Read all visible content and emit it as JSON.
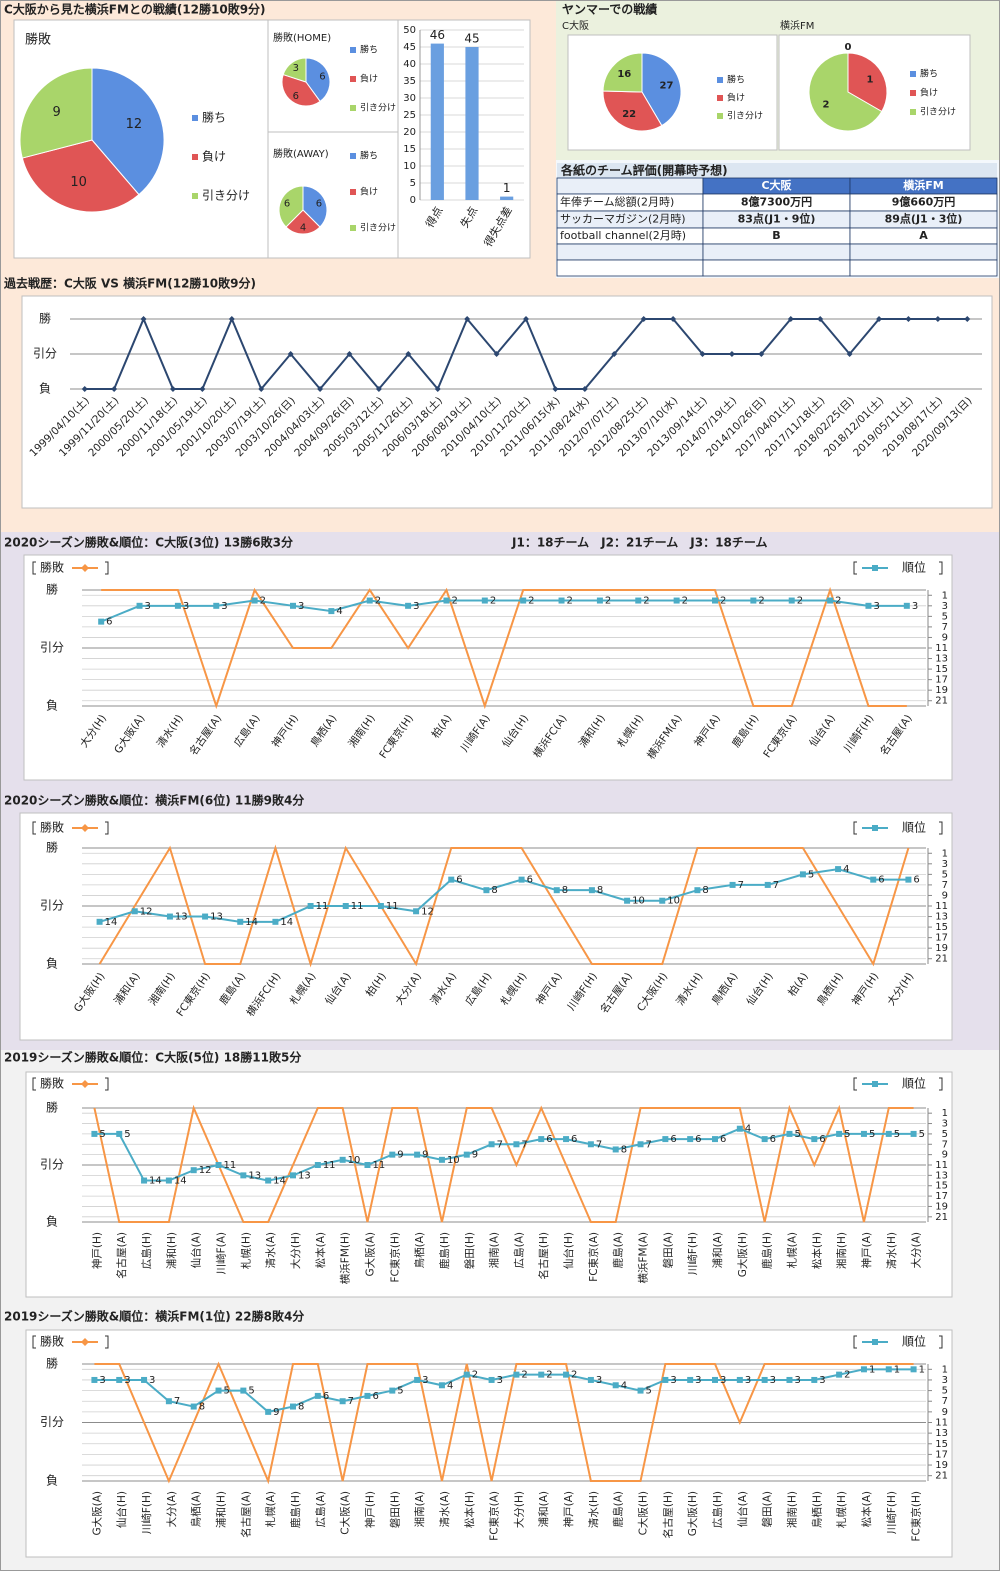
{
  "header": {
    "title": "C大阪から見た横浜FMとの戦績(12勝10敗9分)",
    "yanmar_title": "ヤンマーでの戦績"
  },
  "chart_data": [
    {
      "type": "pie",
      "title": "勝敗",
      "categories": [
        "勝ち",
        "負け",
        "引き分け"
      ],
      "values": [
        12,
        10,
        9
      ],
      "colors": [
        "#5b8fe0",
        "#e05555",
        "#a9d56a"
      ]
    },
    {
      "type": "pie",
      "title": "勝敗(HOME)",
      "categories": [
        "勝ち",
        "負け",
        "引き分け"
      ],
      "values": [
        6,
        6,
        3
      ],
      "colors": [
        "#5b8fe0",
        "#e05555",
        "#a9d56a"
      ]
    },
    {
      "type": "pie",
      "title": "勝敗(AWAY)",
      "categories": [
        "勝ち",
        "負け",
        "引き分け"
      ],
      "values": [
        6,
        4,
        6
      ],
      "colors": [
        "#5b8fe0",
        "#e05555",
        "#a9d56a"
      ]
    },
    {
      "type": "bar",
      "categories": [
        "得点",
        "失点",
        "得失点差"
      ],
      "values": [
        46,
        45,
        1
      ],
      "color": "#6a9fe0",
      "ylim": [
        0,
        50
      ],
      "yticks": [
        0,
        5,
        10,
        15,
        20,
        25,
        30,
        35,
        40,
        45,
        50
      ],
      "grid": true
    },
    {
      "type": "pie",
      "title": "C大阪",
      "categories": [
        "勝ち",
        "負け",
        "引き分け"
      ],
      "values": [
        27,
        22,
        16
      ],
      "colors": [
        "#5b8fe0",
        "#e05555",
        "#a9d56a"
      ]
    },
    {
      "type": "pie",
      "title": "横浜FM",
      "categories": [
        "勝ち",
        "負け",
        "引き分け"
      ],
      "values": [
        0,
        1,
        2
      ],
      "colors": [
        "#5b8fe0",
        "#e05555",
        "#a9d56a"
      ]
    },
    {
      "type": "line",
      "title": "過去戦歴：C大阪 VS 横浜FM(12勝10敗9分)",
      "categories": [
        "1999/04/10(土)",
        "1999/11/20(土)",
        "2000/05/20(土)",
        "2000/11/18(土)",
        "2001/05/19(土)",
        "2001/10/20(土)",
        "2003/07/19(土)",
        "2003/10/26(日)",
        "2004/04/03(土)",
        "2004/09/26(日)",
        "2005/03/12(土)",
        "2005/11/26(土)",
        "2006/03/18(土)",
        "2006/08/19(土)",
        "2010/04/10(土)",
        "2010/11/20(土)",
        "2011/06/15(水)",
        "2011/08/24(水)",
        "2012/07/07(土)",
        "2012/08/25(土)",
        "2013/07/10(水)",
        "2013/09/14(土)",
        "2014/07/19(土)",
        "2014/10/26(日)",
        "2017/04/01(土)",
        "2017/11/18(土)",
        "2018/02/25(日)",
        "2018/12/01(土)",
        "2019/05/11(土)",
        "2019/08/17(土)",
        "2020/09/13(日)"
      ],
      "values": [
        0,
        0,
        2,
        0,
        0,
        2,
        0,
        1,
        0,
        1,
        0,
        1,
        0,
        2,
        1,
        2,
        0,
        0,
        1,
        2,
        2,
        1,
        1,
        1,
        2,
        2,
        1,
        2,
        2,
        2,
        2
      ],
      "color": "#2c4770",
      "marker": "diamond",
      "ylim": [
        0,
        2
      ],
      "yticks": [
        {
          "value": 0,
          "label": "負"
        },
        {
          "value": 1,
          "label": "引分"
        },
        {
          "value": 2,
          "label": "勝"
        }
      ],
      "grid": true
    },
    {
      "type": "line",
      "title": "2020シーズン勝敗&順位：C大阪(3位) 13勝6敗3分",
      "note": "J1：18チーム　J2：21チーム　J3：18チーム",
      "categories": [
        "大分(H)",
        "G大阪(A)",
        "清水(H)",
        "名古屋(A)",
        "広島(A)",
        "神戸(H)",
        "鳥栖(A)",
        "湘南(H)",
        "FC東京(H)",
        "柏(A)",
        "川崎F(A)",
        "仙台(H)",
        "横浜FC(A)",
        "浦和(H)",
        "札幌(H)",
        "横浜FM(A)",
        "神戸(A)",
        "鹿島(H)",
        "FC東京(A)",
        "仙台(A)",
        "川崎F(H)",
        "名古屋(A)"
      ],
      "series": [
        {
          "name": "勝敗",
          "color": "#f79646",
          "values": [
            2,
            2,
            2,
            0,
            2,
            1,
            1,
            2,
            1,
            2,
            0,
            2,
            2,
            2,
            2,
            2,
            2,
            0,
            0,
            2,
            0,
            0
          ]
        },
        {
          "name": "順位",
          "color": "#4bacc6",
          "axis": "y2",
          "marker": "square",
          "labels": true,
          "values": [
            6,
            3,
            3,
            3,
            2,
            3,
            4,
            2,
            3,
            2,
            2,
            2,
            2,
            2,
            2,
            2,
            2,
            2,
            2,
            2,
            3,
            3
          ]
        }
      ],
      "ylim": [
        0,
        2
      ],
      "yticks": [
        {
          "value": 0,
          "label": "負"
        },
        {
          "value": 1,
          "label": "引分"
        },
        {
          "value": 2,
          "label": "勝"
        }
      ],
      "y2lim": [
        22,
        0
      ],
      "y2ticks": [
        1,
        3,
        5,
        7,
        9,
        11,
        13,
        15,
        17,
        19,
        21
      ],
      "grid": true
    },
    {
      "type": "line",
      "title": "2020シーズン勝敗&順位：横浜FM(6位) 11勝9敗4分",
      "categories": [
        "G大阪(H)",
        "浦和(A)",
        "湘南(H)",
        "FC東京(H)",
        "鹿島(A)",
        "横浜FC(H)",
        "札幌(A)",
        "仙台(A)",
        "柏(H)",
        "大分(A)",
        "清水(A)",
        "広島(H)",
        "札幌(H)",
        "神戸(A)",
        "川崎F(H)",
        "名古屋(A)",
        "C大阪(H)",
        "清水(H)",
        "鳥栖(A)",
        "仙台(H)",
        "柏(A)",
        "鳥栖(H)",
        "神戸(H)",
        "大分(H)"
      ],
      "series": [
        {
          "name": "勝敗",
          "color": "#f79646",
          "values": [
            0,
            1,
            2,
            0,
            0,
            2,
            0,
            2,
            1,
            0,
            2,
            2,
            2,
            1,
            0,
            0,
            0,
            2,
            2,
            2,
            2,
            1,
            0,
            2
          ]
        },
        {
          "name": "順位",
          "color": "#4bacc6",
          "axis": "y2",
          "marker": "square",
          "labels": true,
          "values": [
            14,
            12,
            13,
            13,
            14,
            14,
            11,
            11,
            11,
            12,
            6,
            8,
            6,
            8,
            8,
            10,
            10,
            8,
            7,
            7,
            5,
            4,
            6,
            6
          ]
        }
      ],
      "ylim": [
        0,
        2
      ],
      "yticks": [
        {
          "value": 0,
          "label": "負"
        },
        {
          "value": 1,
          "label": "引分"
        },
        {
          "value": 2,
          "label": "勝"
        }
      ],
      "y2lim": [
        22,
        0
      ],
      "y2ticks": [
        1,
        3,
        5,
        7,
        9,
        11,
        13,
        15,
        17,
        19,
        21
      ],
      "grid": true
    },
    {
      "type": "line",
      "title": "2019シーズン勝敗&順位：C大阪(5位) 18勝11敗5分",
      "categories": [
        "神戸(H)",
        "名古屋(A)",
        "広島(H)",
        "浦和(H)",
        "仙台(A)",
        "川崎F(A)",
        "札幌(H)",
        "清水(A)",
        "大分(H)",
        "松本(A)",
        "横浜FM(H)",
        "G大阪(A)",
        "FC東京(H)",
        "鳥栖(A)",
        "鹿島(H)",
        "磐田(H)",
        "湘南(A)",
        "広島(A)",
        "名古屋(H)",
        "仙台(H)",
        "FC東京(A)",
        "鹿島(A)",
        "横浜FM(A)",
        "磐田(A)",
        "川崎F(H)",
        "浦和(A)",
        "G大阪(H)",
        "鹿島(H)",
        "札幌(A)",
        "松本(H)",
        "湘南(H)",
        "神戸(A)",
        "清水(H)",
        "大分(A)"
      ],
      "series": [
        {
          "name": "勝敗",
          "color": "#f79646",
          "values": [
            2,
            0,
            0,
            0,
            2,
            1,
            0,
            0,
            1,
            2,
            2,
            0,
            2,
            2,
            0,
            2,
            2,
            1,
            2,
            1,
            0,
            0,
            2,
            2,
            2,
            2,
            2,
            0,
            2,
            1,
            2,
            0,
            2,
            2
          ]
        },
        {
          "name": "順位",
          "color": "#4bacc6",
          "axis": "y2",
          "marker": "square",
          "labels": true,
          "values": [
            5,
            5,
            14,
            14,
            12,
            11,
            13,
            14,
            13,
            11,
            10,
            11,
            9,
            9,
            10,
            9,
            7,
            7,
            6,
            6,
            7,
            8,
            7,
            6,
            6,
            6,
            4,
            6,
            5,
            6,
            5,
            5,
            5,
            5
          ]
        }
      ],
      "ylim": [
        0,
        2
      ],
      "yticks": [
        {
          "value": 0,
          "label": "負"
        },
        {
          "value": 1,
          "label": "引分"
        },
        {
          "value": 2,
          "label": "勝"
        }
      ],
      "y2lim": [
        22,
        0
      ],
      "y2ticks": [
        1,
        3,
        5,
        7,
        9,
        11,
        13,
        15,
        17,
        19,
        21
      ],
      "grid": true
    },
    {
      "type": "line",
      "title": "2019シーズン勝敗&順位：横浜FM(1位) 22勝8敗4分",
      "categories": [
        "G大阪(A)",
        "仙台(H)",
        "川崎F(H)",
        "大分(A)",
        "鳥栖(A)",
        "浦和(H)",
        "名古屋(A)",
        "札幌(A)",
        "鹿島(H)",
        "広島(A)",
        "C大阪(A)",
        "神戸(H)",
        "磐田(H)",
        "湘南(A)",
        "清水(A)",
        "松本(H)",
        "FC東京(A)",
        "大分(H)",
        "浦和(A)",
        "神戸(A)",
        "清水(H)",
        "鹿島(A)",
        "C大阪(H)",
        "名古屋(H)",
        "G大阪(H)",
        "広島(H)",
        "仙台(A)",
        "磐田(A)",
        "湘南(H)",
        "鳥栖(H)",
        "札幌(H)",
        "松本(A)",
        "川崎F(H)",
        "FC東京(H)"
      ],
      "series": [
        {
          "name": "勝敗",
          "color": "#f79646",
          "values": [
            2,
            2,
            1,
            0,
            1,
            2,
            1,
            0,
            2,
            2,
            0,
            2,
            2,
            2,
            0,
            2,
            0,
            2,
            2,
            2,
            0,
            0,
            0,
            2,
            2,
            2,
            1,
            2,
            2,
            2,
            2,
            2,
            2,
            2
          ]
        },
        {
          "name": "順位",
          "color": "#4bacc6",
          "axis": "y2",
          "marker": "square",
          "labels": true,
          "values": [
            3,
            3,
            3,
            7,
            8,
            5,
            5,
            9,
            8,
            6,
            7,
            6,
            5,
            3,
            4,
            2,
            3,
            2,
            2,
            2,
            3,
            4,
            5,
            3,
            3,
            3,
            3,
            3,
            3,
            3,
            2,
            1,
            1,
            1
          ]
        }
      ],
      "ylim": [
        0,
        2
      ],
      "yticks": [
        {
          "value": 0,
          "label": "負"
        },
        {
          "value": 1,
          "label": "引分"
        },
        {
          "value": 2,
          "label": "勝"
        }
      ],
      "y2lim": [
        22,
        0
      ],
      "y2ticks": [
        1,
        3,
        5,
        7,
        9,
        11,
        13,
        15,
        17,
        19,
        21
      ],
      "grid": true
    }
  ],
  "table": {
    "title": "各紙のチーム評価(開幕時予想)",
    "header": [
      "C大阪",
      "横浜FM"
    ],
    "rows": [
      [
        "年俸チーム総額(2月時)",
        "8億7300万円",
        "9億660万円"
      ],
      [
        "サッカーマガジン(2月時)",
        "83点(J1・9位)",
        "89点(J1・3位)"
      ],
      [
        "football channel(2月時)",
        "B",
        "A"
      ]
    ]
  }
}
